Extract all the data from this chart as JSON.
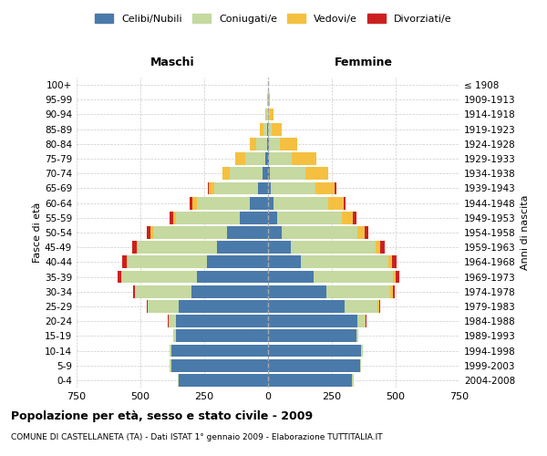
{
  "age_groups": [
    "0-4",
    "5-9",
    "10-14",
    "15-19",
    "20-24",
    "25-29",
    "30-34",
    "35-39",
    "40-44",
    "45-49",
    "50-54",
    "55-59",
    "60-64",
    "65-69",
    "70-74",
    "75-79",
    "80-84",
    "85-89",
    "90-94",
    "95-99",
    "100+"
  ],
  "birth_years": [
    "2004-2008",
    "1999-2003",
    "1994-1998",
    "1989-1993",
    "1984-1988",
    "1979-1983",
    "1974-1978",
    "1969-1973",
    "1964-1968",
    "1959-1963",
    "1954-1958",
    "1949-1953",
    "1944-1948",
    "1939-1943",
    "1934-1938",
    "1929-1933",
    "1924-1928",
    "1919-1923",
    "1914-1918",
    "1909-1913",
    "≤ 1908"
  ],
  "males": {
    "celibi": [
      350,
      380,
      380,
      360,
      360,
      350,
      300,
      280,
      240,
      200,
      160,
      110,
      70,
      40,
      20,
      10,
      5,
      2,
      1,
      0,
      0
    ],
    "coniugati": [
      5,
      5,
      5,
      10,
      30,
      120,
      220,
      290,
      310,
      310,
      290,
      250,
      210,
      170,
      130,
      80,
      40,
      15,
      5,
      2,
      0
    ],
    "vedovi": [
      0,
      0,
      0,
      0,
      0,
      2,
      3,
      4,
      5,
      6,
      10,
      12,
      18,
      22,
      28,
      38,
      28,
      15,
      6,
      2,
      0
    ],
    "divorziati": [
      0,
      0,
      0,
      0,
      2,
      4,
      6,
      14,
      16,
      16,
      14,
      12,
      8,
      4,
      2,
      1,
      0,
      0,
      0,
      0,
      0
    ]
  },
  "females": {
    "nubili": [
      330,
      360,
      365,
      345,
      350,
      300,
      230,
      180,
      130,
      90,
      55,
      35,
      20,
      12,
      7,
      4,
      2,
      1,
      0,
      0,
      0
    ],
    "coniugate": [
      5,
      5,
      5,
      10,
      30,
      130,
      250,
      310,
      340,
      330,
      295,
      255,
      215,
      175,
      140,
      90,
      45,
      15,
      6,
      2,
      0
    ],
    "vedove": [
      0,
      0,
      0,
      0,
      2,
      4,
      8,
      10,
      14,
      18,
      28,
      42,
      60,
      75,
      88,
      95,
      68,
      38,
      16,
      5,
      1
    ],
    "divorziate": [
      0,
      0,
      0,
      0,
      2,
      4,
      8,
      14,
      18,
      18,
      16,
      14,
      10,
      5,
      2,
      1,
      0,
      0,
      0,
      0,
      0
    ]
  },
  "colors": {
    "celibi_nubili": "#4a7aaa",
    "coniugati_e": "#c5d9a0",
    "vedovi_e": "#f5c040",
    "divorziati_e": "#cc2020"
  },
  "xlim": 750,
  "title": "Popolazione per età, sesso e stato civile - 2009",
  "subtitle": "COMUNE DI CASTELLANETA (TA) - Dati ISTAT 1° gennaio 2009 - Elaborazione TUTTITALIA.IT",
  "ylabel_left": "Fasce di età",
  "ylabel_right": "Anni di nascita",
  "label_maschi": "Maschi",
  "label_femmine": "Femmine",
  "legend_labels": [
    "Celibi/Nubili",
    "Coniugati/e",
    "Vedovi/e",
    "Divorziati/e"
  ]
}
